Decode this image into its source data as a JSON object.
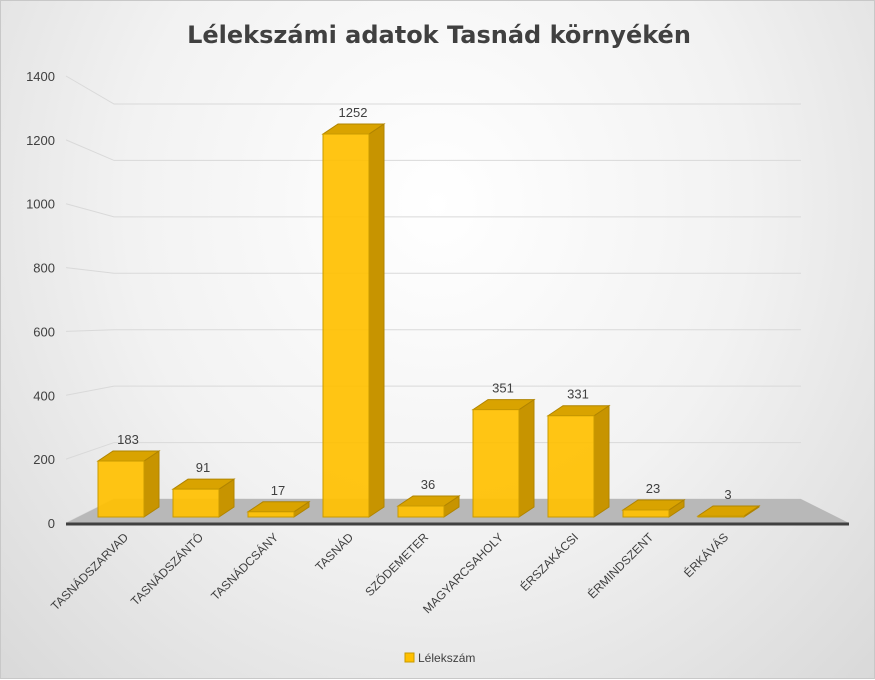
{
  "chart_data": {
    "type": "bar",
    "title": "Lélekszámi adatok Tasnád környékén",
    "categories": [
      "TASNÁDSZARVAD",
      "TASNÁDSZÁNTÓ",
      "TASNÁDCSÁNY",
      "TASNÁD",
      "SZŐDEMETER",
      "MAGYARCSAHOLY",
      "ÉRSZAKÁCSI",
      "ÉRMINDSZENT",
      "ÉRKÁVÁS"
    ],
    "series": [
      {
        "name": "Lélekszám",
        "values": [
          183,
          91,
          17,
          1252,
          36,
          351,
          331,
          23,
          3
        ],
        "color": "#FFC000"
      }
    ],
    "yticks": [
      0,
      200,
      400,
      600,
      800,
      1000,
      1200,
      1400
    ],
    "ylim": [
      0,
      1400
    ],
    "grid": true,
    "style": "3d-column",
    "legend": "bottom",
    "xlabel": "",
    "ylabel": ""
  }
}
